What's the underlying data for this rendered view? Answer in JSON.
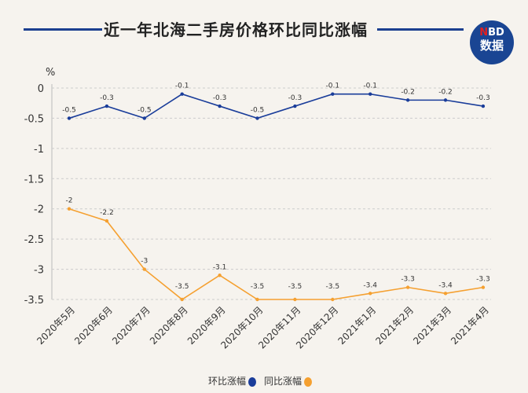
{
  "title": "近一年北海二手房价格环比同比涨幅",
  "logo": {
    "line1_accent": "N",
    "line1": "BD",
    "line2": "数据"
  },
  "chart_data": {
    "type": "line",
    "title": "近一年北海二手房价格环比同比涨幅",
    "ylabel": "%",
    "ylim": [
      -3.5,
      0
    ],
    "yticks": [
      "0",
      "-0.5",
      "-1",
      "-1.5",
      "-2",
      "-2.5",
      "-3",
      "-3.5"
    ],
    "grid": true,
    "legend": "bottom",
    "categories": [
      "2020年5月",
      "2020年6月",
      "2020年7月",
      "2020年8月",
      "2020年9月",
      "2020年10月",
      "2020年11月",
      "2020年12月",
      "2021年1月",
      "2021年2月",
      "2021年3月",
      "2021年4月"
    ],
    "series": [
      {
        "name": "环比涨幅",
        "color": "#1a3d9a",
        "values": [
          -0.5,
          -0.3,
          -0.5,
          -0.1,
          -0.3,
          -0.5,
          -0.3,
          -0.1,
          -0.1,
          -0.2,
          -0.2,
          -0.3
        ]
      },
      {
        "name": "同比涨幅",
        "color": "#f5a030",
        "values": [
          -2,
          -2.2,
          -3,
          -3.5,
          -3.1,
          -3.5,
          -3.5,
          -3.5,
          -3.4,
          -3.3,
          -3.4,
          -3.3
        ]
      }
    ]
  }
}
